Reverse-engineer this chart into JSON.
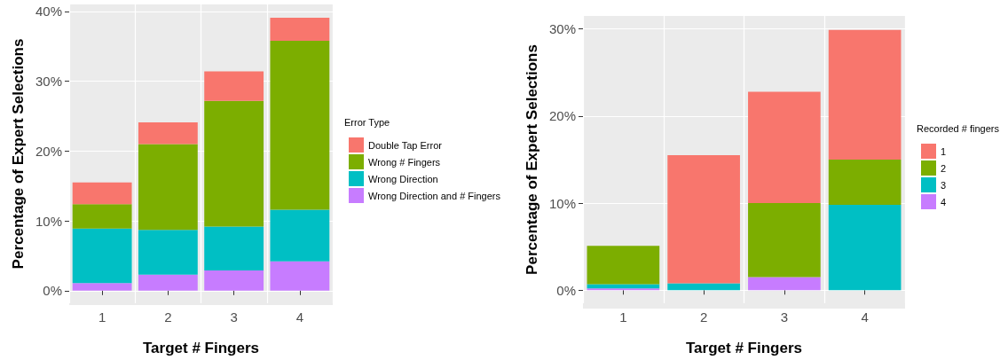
{
  "chart_data": [
    {
      "type": "bar",
      "stacked": true,
      "xlabel": "Target # Fingers",
      "ylabel": "Percentage of Expert Selections",
      "legend_title": "Error Type",
      "legend": "right",
      "grid": true,
      "categories": [
        "1",
        "2",
        "3",
        "4"
      ],
      "series": [
        {
          "name": "Wrong Direction and # Fingers",
          "color": "#c77cff",
          "values": [
            1.1,
            2.3,
            2.9,
            4.2
          ]
        },
        {
          "name": "Wrong Direction",
          "color": "#00bfc4",
          "values": [
            7.8,
            6.4,
            6.3,
            7.4
          ]
        },
        {
          "name": "Wrong # Fingers",
          "color": "#7cae00",
          "values": [
            3.5,
            12.3,
            18.0,
            24.2
          ]
        },
        {
          "name": "Double Tap Error",
          "color": "#f8766d",
          "values": [
            3.1,
            3.1,
            4.2,
            3.3
          ]
        }
      ],
      "ylim": [
        -1.8,
        41
      ],
      "yticks": [
        {
          "value": 0,
          "label": "0%"
        },
        {
          "value": 10,
          "label": "10%"
        },
        {
          "value": 20,
          "label": "20%"
        },
        {
          "value": 30,
          "label": "30%"
        },
        {
          "value": 40,
          "label": "40%"
        }
      ]
    },
    {
      "type": "bar",
      "stacked": true,
      "xlabel": "Target # Fingers",
      "ylabel": "Percentage of Expert Selections",
      "legend_title": "Recorded # fingers",
      "legend": "right",
      "grid": true,
      "categories": [
        "1",
        "2",
        "3",
        "4"
      ],
      "series": [
        {
          "name": "4",
          "color": "#c77cff",
          "values": [
            0.2,
            0,
            1.5,
            0
          ]
        },
        {
          "name": "3",
          "color": "#00bfc4",
          "values": [
            0.5,
            0.8,
            0,
            9.8
          ]
        },
        {
          "name": "2",
          "color": "#7cae00",
          "values": [
            4.4,
            0,
            8.5,
            5.2
          ]
        },
        {
          "name": "1",
          "color": "#f8766d",
          "values": [
            0,
            14.7,
            12.8,
            14.9
          ]
        }
      ],
      "ylim": [
        -1.5,
        31.5
      ],
      "yticks": [
        {
          "value": 0,
          "label": "0%"
        },
        {
          "value": 10,
          "label": "10%"
        },
        {
          "value": 20,
          "label": "20%"
        },
        {
          "value": 30,
          "label": "30%"
        }
      ]
    }
  ]
}
